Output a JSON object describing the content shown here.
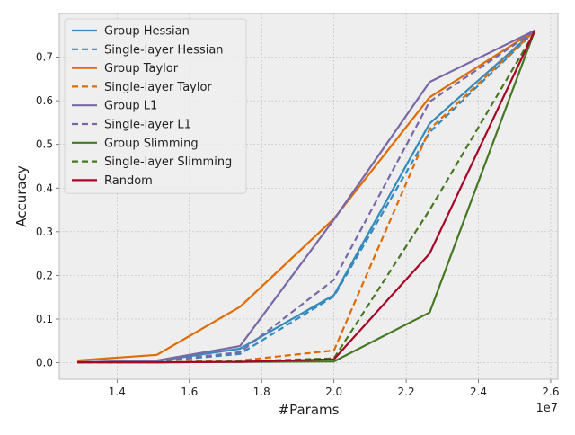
{
  "chart_data": {
    "type": "line",
    "title": "",
    "xlabel": "#Params",
    "ylabel": "Accuracy",
    "x_offset_label": "1e7",
    "xlim": [
      12.4,
      26.2
    ],
    "ylim": [
      -0.038,
      0.8
    ],
    "x_ticks": [
      14,
      16,
      18,
      20,
      22,
      24,
      26
    ],
    "x_tick_labels": [
      "1.4",
      "1.6",
      "1.8",
      "2.0",
      "2.2",
      "2.4",
      "2.6"
    ],
    "y_ticks": [
      0.0,
      0.1,
      0.2,
      0.3,
      0.4,
      0.5,
      0.6,
      0.7
    ],
    "y_tick_labels": [
      "0.0",
      "0.1",
      "0.2",
      "0.3",
      "0.4",
      "0.5",
      "0.6",
      "0.7"
    ],
    "grid": true,
    "legend_position": "top-left",
    "x": [
      12.9,
      15.1,
      17.4,
      20.0,
      22.65,
      25.56
    ],
    "series": [
      {
        "name": "Group Hessian",
        "color": "#348ABD",
        "dashed": false,
        "values": [
          0.001,
          0.004,
          0.032,
          0.155,
          0.548,
          0.761
        ]
      },
      {
        "name": "Single-layer Hessian",
        "color": "#348ABD",
        "dashed": true,
        "values": [
          0.001,
          0.003,
          0.02,
          0.152,
          0.528,
          0.759
        ]
      },
      {
        "name": "Group Taylor",
        "color": "#E06C00",
        "dashed": false,
        "values": [
          0.005,
          0.018,
          0.128,
          0.33,
          0.608,
          0.761
        ]
      },
      {
        "name": "Single-layer Taylor",
        "color": "#E06C00",
        "dashed": true,
        "values": [
          0.001,
          0.001,
          0.005,
          0.028,
          0.535,
          0.76
        ]
      },
      {
        "name": "Group L1",
        "color": "#7A68A6",
        "dashed": false,
        "values": [
          0.001,
          0.005,
          0.038,
          0.328,
          0.643,
          0.761
        ]
      },
      {
        "name": "Single-layer L1",
        "color": "#7A68A6",
        "dashed": true,
        "values": [
          0.001,
          0.003,
          0.024,
          0.19,
          0.598,
          0.76
        ]
      },
      {
        "name": "Group Slimming",
        "color": "#467821",
        "dashed": false,
        "values": [
          0.001,
          0.001,
          0.002,
          0.003,
          0.115,
          0.761
        ]
      },
      {
        "name": "Single-layer Slimming",
        "color": "#467821",
        "dashed": true,
        "values": [
          0.001,
          0.001,
          0.003,
          0.01,
          0.35,
          0.758
        ]
      },
      {
        "name": "Random",
        "color": "#A60628",
        "dashed": false,
        "values": [
          0.001,
          0.001,
          0.002,
          0.008,
          0.25,
          0.761
        ]
      }
    ]
  }
}
